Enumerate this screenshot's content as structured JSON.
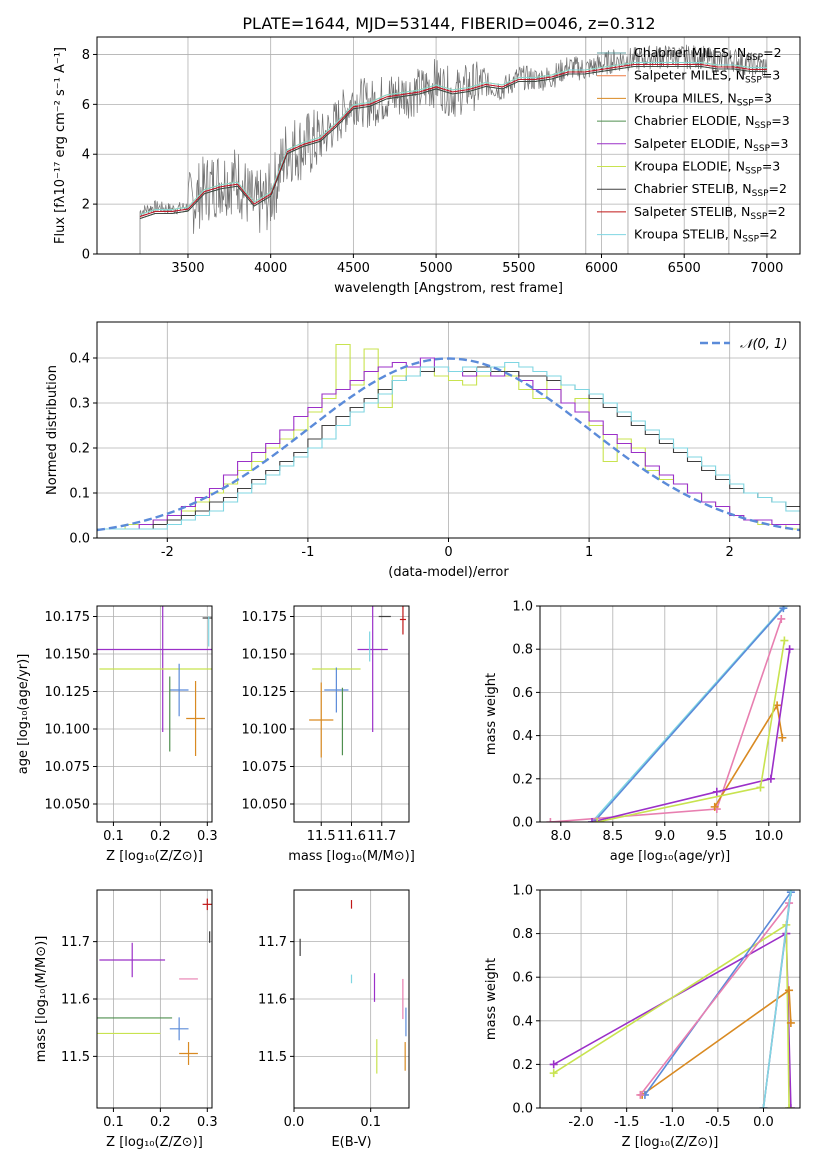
{
  "figure": {
    "title": "PLATE=1644, MJD=53144, FIBERID=0046, z=0.312"
  },
  "colors": {
    "chabrier_miles": "#5f9ea0",
    "salpeter_miles": "#ee7a42",
    "kroupa_miles": "#d98a22",
    "chabrier_elodie": "#4f8f4f",
    "salpeter_elodie": "#9b30c8",
    "kroupa_elodie": "#c8e34f",
    "chabrier_stelib": "#404040",
    "salpeter_stelib": "#c01818",
    "kroupa_stelib": "#7fd6e2",
    "gauss": "#5b8bd9",
    "pink": "#e87fb0",
    "grey_spectrum": "#707070"
  },
  "chart_data": [
    {
      "id": "spectrum",
      "type": "line",
      "xlabel": "wavelength [Angstrom, rest frame]",
      "ylabel": "Flux [fλ10⁻¹⁷ erg cm⁻² s⁻¹ A⁻¹]",
      "xlim": [
        2950,
        7200
      ],
      "ylim": [
        0,
        8.7
      ],
      "xticks": [
        3500,
        4000,
        4500,
        5000,
        5500,
        6000,
        6500,
        7000
      ],
      "yticks": [
        0,
        2,
        4,
        6,
        8
      ],
      "grid": true,
      "legend": "top-right",
      "legend_entries": [
        {
          "label": "Chabrier MILES, N",
          "sub": "SSP",
          "tail": "=2",
          "color": "chabrier_miles"
        },
        {
          "label": "Salpeter MILES, N",
          "sub": "SSP",
          "tail": "=3",
          "color": "salpeter_miles"
        },
        {
          "label": "Kroupa MILES, N",
          "sub": "SSP",
          "tail": "=3",
          "color": "kroupa_miles"
        },
        {
          "label": "Chabrier ELODIE, N",
          "sub": "SSP",
          "tail": "=3",
          "color": "chabrier_elodie"
        },
        {
          "label": "Salpeter ELODIE, N",
          "sub": "SSP",
          "tail": "=3",
          "color": "salpeter_elodie"
        },
        {
          "label": "Kroupa ELODIE, N",
          "sub": "SSP",
          "tail": "=3",
          "color": "kroupa_elodie"
        },
        {
          "label": "Chabrier STELIB, N",
          "sub": "SSP",
          "tail": "=2",
          "color": "chabrier_stelib"
        },
        {
          "label": "Salpeter STELIB, N",
          "sub": "SSP",
          "tail": "=2",
          "color": "salpeter_stelib"
        },
        {
          "label": "Kroupa STELIB, N",
          "sub": "SSP",
          "tail": "=2",
          "color": "kroupa_stelib"
        }
      ],
      "data_x": [
        3210,
        3300,
        3400,
        3500,
        3600,
        3700,
        3800,
        3900,
        4000,
        4100,
        4200,
        4300,
        4400,
        4500,
        4600,
        4700,
        4800,
        4900,
        5000,
        5100,
        5200,
        5300,
        5400,
        5500,
        5600,
        5700,
        5800,
        5900,
        6000,
        6100,
        6200,
        6300,
        6400,
        6500,
        6600,
        6700,
        6800,
        6900,
        7000
      ],
      "data_y": [
        1.7,
        1.9,
        1.8,
        1.9,
        2.6,
        2.9,
        3.0,
        1.9,
        2.3,
        4.2,
        4.3,
        4.6,
        5.3,
        6.2,
        6.0,
        6.3,
        6.4,
        6.5,
        6.9,
        6.4,
        6.7,
        6.8,
        6.6,
        7.1,
        7.0,
        7.1,
        7.5,
        7.4,
        7.6,
        7.8,
        7.8,
        7.9,
        7.9,
        7.9,
        7.9,
        7.7,
        7.8,
        7.6,
        7.5
      ],
      "model_y": [
        1.5,
        1.7,
        1.7,
        1.8,
        2.5,
        2.7,
        2.8,
        2.0,
        2.4,
        4.1,
        4.4,
        4.6,
        5.2,
        5.9,
        6.0,
        6.3,
        6.4,
        6.5,
        6.7,
        6.5,
        6.6,
        6.8,
        6.7,
        7.0,
        7.0,
        7.1,
        7.3,
        7.3,
        7.4,
        7.5,
        7.6,
        7.6,
        7.6,
        7.6,
        7.6,
        7.5,
        7.5,
        7.4,
        7.4
      ]
    },
    {
      "id": "residuals",
      "type": "histogram",
      "xlabel": "(data-model)/error",
      "ylabel": "Normed distribution",
      "xlim": [
        -2.5,
        2.5
      ],
      "ylim": [
        0,
        0.48
      ],
      "xticks": [
        -2,
        -1,
        0,
        1,
        2
      ],
      "yticks": [
        0.0,
        0.1,
        0.2,
        0.3,
        0.4
      ],
      "grid": true,
      "legend": "top-right",
      "legend_entry": "𝒩(0, 1)",
      "bin_width": 0.1,
      "series": [
        {
          "color": "kroupa_elodie",
          "values": [
            0.02,
            0.02,
            0.03,
            0.03,
            0.04,
            0.05,
            0.06,
            0.08,
            0.1,
            0.12,
            0.15,
            0.17,
            0.2,
            0.22,
            0.24,
            0.28,
            0.31,
            0.43,
            0.34,
            0.42,
            0.29,
            0.36,
            0.38,
            0.37,
            0.36,
            0.35,
            0.34,
            0.36,
            0.38,
            0.36,
            0.33,
            0.31,
            0.35,
            0.3,
            0.31,
            0.25,
            0.17,
            0.22,
            0.2,
            0.15,
            0.13,
            0.12,
            0.1,
            0.08,
            0.07,
            0.05,
            0.04,
            0.03,
            0.03,
            0.02
          ]
        },
        {
          "color": "salpeter_elodie",
          "values": [
            0.02,
            0.02,
            0.02,
            0.03,
            0.04,
            0.05,
            0.07,
            0.09,
            0.11,
            0.14,
            0.17,
            0.19,
            0.21,
            0.24,
            0.27,
            0.29,
            0.32,
            0.33,
            0.35,
            0.37,
            0.38,
            0.39,
            0.38,
            0.4,
            0.38,
            0.37,
            0.36,
            0.37,
            0.36,
            0.37,
            0.35,
            0.33,
            0.33,
            0.3,
            0.28,
            0.26,
            0.23,
            0.21,
            0.19,
            0.16,
            0.14,
            0.12,
            0.1,
            0.08,
            0.07,
            0.05,
            0.04,
            0.04,
            0.03,
            0.03
          ]
        },
        {
          "color": "chabrier_stelib",
          "values": [
            0.02,
            0.02,
            0.02,
            0.02,
            0.03,
            0.04,
            0.05,
            0.06,
            0.08,
            0.09,
            0.11,
            0.13,
            0.15,
            0.17,
            0.19,
            0.22,
            0.25,
            0.27,
            0.29,
            0.31,
            0.33,
            0.35,
            0.36,
            0.37,
            0.38,
            0.37,
            0.37,
            0.38,
            0.37,
            0.37,
            0.36,
            0.36,
            0.35,
            0.34,
            0.33,
            0.31,
            0.29,
            0.27,
            0.25,
            0.23,
            0.21,
            0.19,
            0.17,
            0.15,
            0.13,
            0.11,
            0.1,
            0.09,
            0.08,
            0.07
          ]
        },
        {
          "color": "kroupa_stelib",
          "values": [
            0.02,
            0.02,
            0.02,
            0.02,
            0.02,
            0.03,
            0.04,
            0.05,
            0.06,
            0.08,
            0.1,
            0.12,
            0.14,
            0.16,
            0.18,
            0.2,
            0.22,
            0.25,
            0.28,
            0.3,
            0.32,
            0.35,
            0.36,
            0.38,
            0.38,
            0.37,
            0.38,
            0.37,
            0.38,
            0.39,
            0.38,
            0.37,
            0.36,
            0.34,
            0.33,
            0.32,
            0.3,
            0.28,
            0.26,
            0.24,
            0.22,
            0.2,
            0.18,
            0.16,
            0.14,
            0.12,
            0.1,
            0.09,
            0.08,
            0.06
          ]
        }
      ],
      "gauss_mu": 0,
      "gauss_sigma": 1
    },
    {
      "id": "age_vs_Z",
      "type": "scatter",
      "xlabel": "Z [log₁₀(Z/Z⊙)]",
      "ylabel": "age  [log₁₀(age/yr)]",
      "xlim": [
        0.065,
        0.31
      ],
      "ylim": [
        10.038,
        10.182
      ],
      "xticks": [
        0.1,
        0.2,
        0.3
      ],
      "yticks": [
        10.05,
        10.075,
        10.1,
        10.125,
        10.15,
        10.175
      ],
      "grid": true,
      "points": [
        {
          "x": 0.205,
          "y": 10.153,
          "ex": 0.14,
          "ey": 0.11,
          "color": "salpeter_elodie"
        },
        {
          "x": 0.19,
          "y": 10.14,
          "ex": 0.12,
          "ey": 0.0,
          "color": "kroupa_elodie"
        },
        {
          "x": 0.24,
          "y": 10.126,
          "ex": 0.02,
          "ey": 0.035,
          "color": "gauss"
        },
        {
          "x": 0.275,
          "y": 10.107,
          "ex": 0.02,
          "ey": 0.05,
          "color": "kroupa_miles"
        },
        {
          "x": 0.22,
          "y": 10.11,
          "ex": 0.0,
          "ey": 0.05,
          "color": "chabrier_elodie"
        },
        {
          "x": 0.3,
          "y": 10.174,
          "ex": 0.01,
          "ey": 0.0,
          "color": "chabrier_stelib"
        },
        {
          "x": 0.303,
          "y": 10.165,
          "ex": 0.0,
          "ey": 0.02,
          "color": "kroupa_stelib"
        }
      ]
    },
    {
      "id": "age_vs_mass",
      "type": "scatter",
      "xlabel": "mass [log₁₀(M/M⊙)]",
      "ylabel": "",
      "xlim": [
        11.41,
        11.79
      ],
      "ylim": [
        10.038,
        10.182
      ],
      "xticks": [
        11.5,
        11.6,
        11.7
      ],
      "xtick_labels": [
        "11.5",
        "11.6",
        "11.7"
      ],
      "yticks": [
        10.05,
        10.075,
        10.1,
        10.125,
        10.15,
        10.175
      ],
      "grid": true,
      "points": [
        {
          "x": 11.67,
          "y": 10.153,
          "ex": 0.05,
          "ey": 0.11,
          "color": "salpeter_elodie"
        },
        {
          "x": 11.55,
          "y": 10.14,
          "ex": 0.08,
          "ey": 0.0,
          "color": "kroupa_elodie"
        },
        {
          "x": 11.55,
          "y": 10.126,
          "ex": 0.04,
          "ey": 0.03,
          "color": "gauss"
        },
        {
          "x": 11.5,
          "y": 10.106,
          "ex": 0.04,
          "ey": 0.05,
          "color": "kroupa_miles"
        },
        {
          "x": 11.57,
          "y": 10.105,
          "ex": 0.0,
          "ey": 0.045,
          "color": "chabrier_elodie"
        },
        {
          "x": 11.71,
          "y": 10.175,
          "ex": 0.02,
          "ey": 0.0,
          "color": "chabrier_stelib"
        },
        {
          "x": 11.77,
          "y": 10.173,
          "ex": 0.01,
          "ey": 0.02,
          "color": "salpeter_stelib"
        },
        {
          "x": 11.66,
          "y": 10.155,
          "ex": 0.0,
          "ey": 0.02,
          "color": "kroupa_stelib"
        }
      ]
    },
    {
      "id": "massweight_vs_age",
      "type": "line",
      "xlabel": "age  [log₁₀(age/yr)]",
      "ylabel": "mass weight",
      "xlim": [
        7.8,
        10.3
      ],
      "ylim": [
        0,
        1.0
      ],
      "xticks": [
        8.0,
        8.5,
        9.0,
        9.5,
        10.0
      ],
      "yticks": [
        0.0,
        0.2,
        0.4,
        0.6,
        0.8,
        1.0
      ],
      "grid": true,
      "series": [
        {
          "color": "kroupa_stelib",
          "x": [
            8.3,
            10.15
          ],
          "y": [
            0.0,
            1.0
          ]
        },
        {
          "color": "gauss",
          "x": [
            8.32,
            10.14
          ],
          "y": [
            0.0,
            0.99
          ]
        },
        {
          "color": "pink",
          "x": [
            7.9,
            9.5,
            10.12
          ],
          "y": [
            0.0,
            0.06,
            0.94
          ]
        },
        {
          "color": "kroupa_miles",
          "x": [
            9.48,
            10.08,
            10.13
          ],
          "y": [
            0.07,
            0.54,
            0.39
          ]
        },
        {
          "color": "salpeter_elodie",
          "x": [
            8.3,
            9.5,
            10.02,
            10.2
          ],
          "y": [
            0.0,
            0.14,
            0.2,
            0.8
          ]
        },
        {
          "color": "kroupa_elodie",
          "x": [
            8.35,
            9.92,
            10.15
          ],
          "y": [
            0.0,
            0.16,
            0.84
          ]
        }
      ]
    },
    {
      "id": "mass_vs_Z",
      "type": "scatter",
      "xlabel": "Z [log₁₀(Z/Z⊙)]",
      "ylabel": "mass [log₁₀(M/M⊙)]",
      "xlim": [
        0.065,
        0.31
      ],
      "ylim": [
        11.41,
        11.79
      ],
      "xticks": [
        0.1,
        0.2,
        0.3
      ],
      "yticks": [
        11.5,
        11.6,
        11.7
      ],
      "grid": true,
      "points": [
        {
          "x": 0.14,
          "y": 11.668,
          "ex": 0.07,
          "ey": 0.06,
          "color": "salpeter_elodie"
        },
        {
          "x": 0.145,
          "y": 11.567,
          "ex": 0.08,
          "ey": 0.0,
          "color": "chabrier_elodie"
        },
        {
          "x": 0.13,
          "y": 11.54,
          "ex": 0.07,
          "ey": 0.0,
          "color": "kroupa_elodie"
        },
        {
          "x": 0.24,
          "y": 11.548,
          "ex": 0.02,
          "ey": 0.04,
          "color": "gauss"
        },
        {
          "x": 0.26,
          "y": 11.505,
          "ex": 0.02,
          "ey": 0.04,
          "color": "kroupa_miles"
        },
        {
          "x": 0.3,
          "y": 11.765,
          "ex": 0.01,
          "ey": 0.02,
          "color": "salpeter_stelib"
        },
        {
          "x": 0.305,
          "y": 11.708,
          "ex": 0.0,
          "ey": 0.02,
          "color": "chabrier_stelib"
        },
        {
          "x": 0.26,
          "y": 11.635,
          "ex": 0.02,
          "ey": 0.0,
          "color": "pink"
        }
      ]
    },
    {
      "id": "mass_vs_ebv",
      "type": "scatter",
      "xlabel": "E(B-V)",
      "ylabel": "",
      "xlim": [
        0.0,
        0.15
      ],
      "ylim": [
        11.41,
        11.79
      ],
      "xticks": [
        0.0,
        0.1
      ],
      "yticks": [
        11.5,
        11.6,
        11.7
      ],
      "grid": true,
      "points": [
        {
          "x": 0.008,
          "y": 11.69,
          "ex": 0.0,
          "ey": 0.03,
          "color": "chabrier_stelib"
        },
        {
          "x": 0.075,
          "y": 11.765,
          "ex": 0.0,
          "ey": 0.015,
          "color": "salpeter_stelib"
        },
        {
          "x": 0.075,
          "y": 11.635,
          "ex": 0.0,
          "ey": 0.015,
          "color": "kroupa_stelib"
        },
        {
          "x": 0.105,
          "y": 11.62,
          "ex": 0.0,
          "ey": 0.05,
          "color": "salpeter_elodie"
        },
        {
          "x": 0.108,
          "y": 11.5,
          "ex": 0.0,
          "ey": 0.06,
          "color": "kroupa_elodie"
        },
        {
          "x": 0.142,
          "y": 11.6,
          "ex": 0.0,
          "ey": 0.07,
          "color": "pink"
        },
        {
          "x": 0.145,
          "y": 11.5,
          "ex": 0.0,
          "ey": 0.05,
          "color": "kroupa_miles"
        },
        {
          "x": 0.146,
          "y": 11.56,
          "ex": 0.0,
          "ey": 0.05,
          "color": "gauss"
        }
      ]
    },
    {
      "id": "massweight_vs_Z",
      "type": "line",
      "xlabel": "Z [log₁₀(Z/Z⊙)]",
      "ylabel": "mass weight",
      "xlim": [
        -2.45,
        0.4
      ],
      "ylim": [
        0,
        1.0
      ],
      "xticks": [
        -2.0,
        -1.5,
        -1.0,
        -0.5,
        0.0
      ],
      "yticks": [
        0.0,
        0.2,
        0.4,
        0.6,
        0.8,
        1.0
      ],
      "grid": true,
      "series": [
        {
          "color": "salpeter_elodie",
          "x": [
            -2.3,
            0.25,
            0.3
          ],
          "y": [
            0.2,
            0.8,
            0.0
          ]
        },
        {
          "color": "kroupa_elodie",
          "x": [
            -2.3,
            0.25,
            0.28
          ],
          "y": [
            0.16,
            0.84,
            0.0
          ]
        },
        {
          "color": "kroupa_miles",
          "x": [
            -1.33,
            0.28,
            0.3
          ],
          "y": [
            0.06,
            0.54,
            0.39
          ]
        },
        {
          "color": "gauss",
          "x": [
            -1.3,
            0.3,
            0.0
          ],
          "y": [
            0.06,
            0.99,
            0.0
          ]
        },
        {
          "color": "pink",
          "x": [
            -1.35,
            0.28,
            0.0
          ],
          "y": [
            0.06,
            0.94,
            0.0
          ]
        },
        {
          "color": "kroupa_stelib",
          "x": [
            0.0,
            0.3
          ],
          "y": [
            0.0,
            1.0
          ]
        }
      ]
    }
  ]
}
